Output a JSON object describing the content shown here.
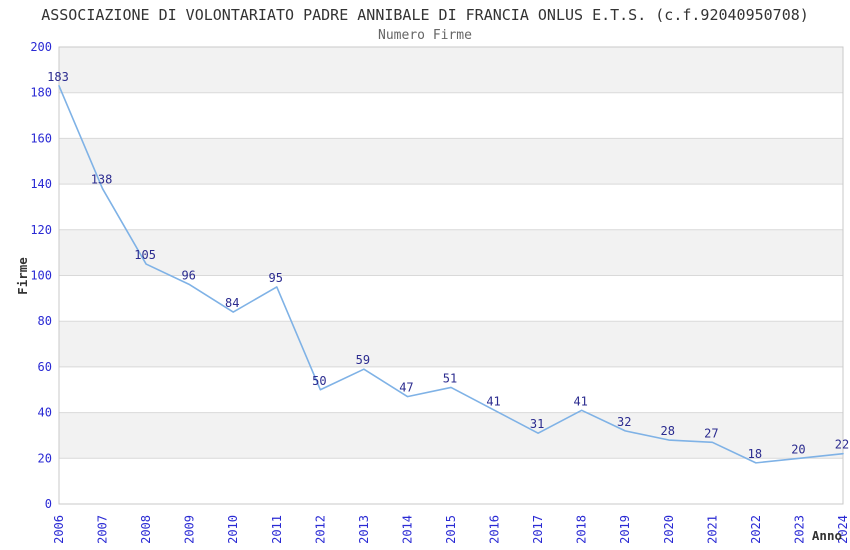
{
  "chart_data": {
    "type": "line",
    "title": "ASSOCIAZIONE DI VOLONTARIATO PADRE ANNIBALE DI FRANCIA ONLUS E.T.S. (c.f.92040950708)",
    "subtitle": "Numero Firme",
    "xlabel": "Anno",
    "ylabel": "Firme",
    "categories": [
      "2006",
      "2007",
      "2008",
      "2009",
      "2010",
      "2011",
      "2012",
      "2013",
      "2014",
      "2015",
      "2016",
      "2017",
      "2018",
      "2019",
      "2020",
      "2021",
      "2022",
      "2023",
      "2024"
    ],
    "values": [
      183,
      138,
      105,
      96,
      84,
      95,
      50,
      59,
      47,
      51,
      41,
      31,
      41,
      32,
      28,
      27,
      18,
      20,
      22
    ],
    "ylim": [
      0,
      200
    ],
    "ytick_step": 20,
    "grid": "horizontal",
    "legend_position": "none",
    "band_fill": "alternating-horizontal",
    "x_tick_rotation": -90,
    "data_labels_shown": true,
    "colors": {
      "line": "#7fb2e6",
      "data_label": "#2b2b8f",
      "tick_label": "#2a2ad4",
      "title": "#333333",
      "subtitle": "#666666",
      "axis_title": "#333333",
      "band": "#f2f2f2",
      "gridline": "#d9d9d9",
      "plot_border": "#c9c9c9",
      "background": "#ffffff"
    }
  }
}
